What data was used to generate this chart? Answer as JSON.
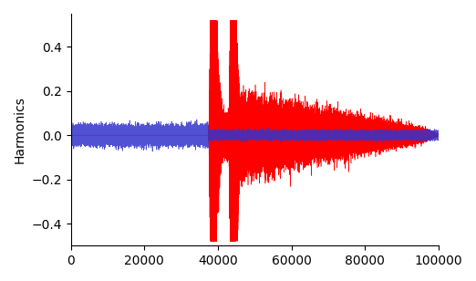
{
  "xlabel": "",
  "ylabel": "Harmonics",
  "xlim": [
    0,
    100000
  ],
  "ylim": [
    -0.5,
    0.55
  ],
  "yticks": [
    -0.4,
    -0.2,
    0.0,
    0.2,
    0.4
  ],
  "xticks": [
    0,
    20000,
    40000,
    60000,
    80000,
    100000
  ],
  "red_color": "#ff0000",
  "blue_color": "#3333cc",
  "background_color": "#ffffff",
  "n_samples": 100000,
  "red_onset": 37500,
  "red_peak_idx": 38500,
  "red_max_amp": 0.48,
  "seed_red": 42,
  "seed_blue": 123
}
